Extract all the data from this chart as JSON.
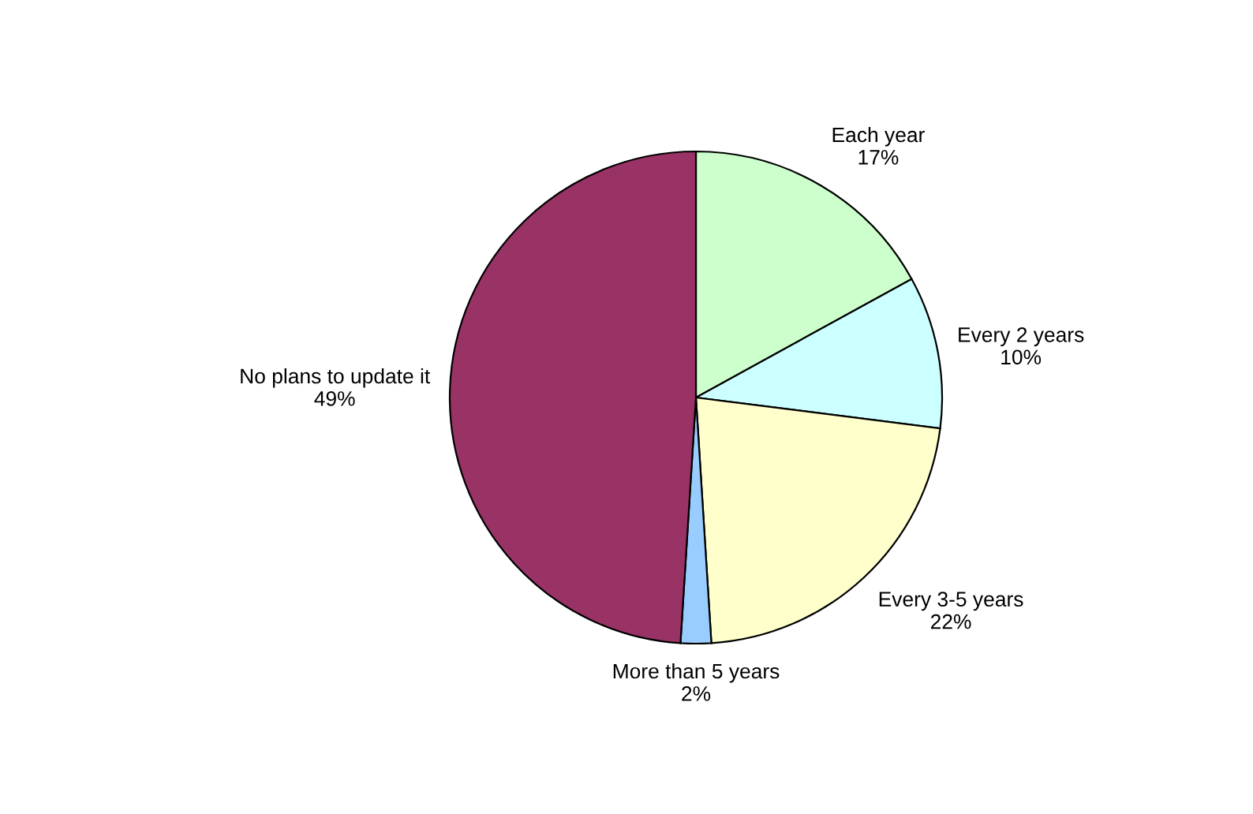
{
  "chart_data": {
    "type": "pie",
    "categories": [
      "Each year",
      "Every 2 years",
      "Every 3-5 years",
      "More than 5 years",
      "No plans to update it"
    ],
    "values": [
      17,
      10,
      22,
      2,
      49
    ],
    "value_labels": [
      "17%",
      "10%",
      "22%",
      "2%",
      "49%"
    ],
    "colors": [
      "#ccffcc",
      "#ccffff",
      "#ffffcc",
      "#99ccff",
      "#993366"
    ],
    "legend": false
  }
}
